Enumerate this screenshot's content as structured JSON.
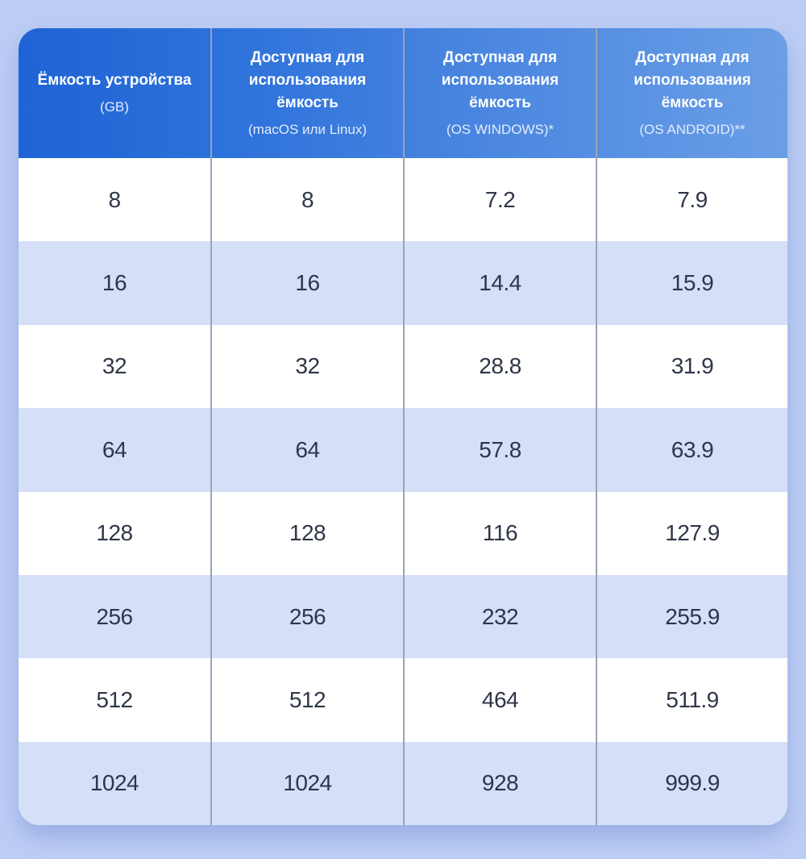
{
  "table": {
    "headers": [
      {
        "title": "Ёмкость устройства",
        "sub": "(GB)"
      },
      {
        "title": "Доступная для использования ёмкость",
        "sub": "(macOS или Linux)"
      },
      {
        "title": "Доступная для использования ёмкость",
        "sub": "(OS WINDOWS)*"
      },
      {
        "title": "Доступная для использования ёмкость",
        "sub": "(OS ANDROID)**"
      }
    ],
    "rows": [
      [
        "8",
        "8",
        "7.2",
        "7.9"
      ],
      [
        "16",
        "16",
        "14.4",
        "15.9"
      ],
      [
        "32",
        "32",
        "28.8",
        "31.9"
      ],
      [
        "64",
        "64",
        "57.8",
        "63.9"
      ],
      [
        "128",
        "128",
        "116",
        "127.9"
      ],
      [
        "256",
        "256",
        "232",
        "255.9"
      ],
      [
        "512",
        "512",
        "464",
        "511.9"
      ],
      [
        "1024",
        "1024",
        "928",
        "999.9"
      ]
    ]
  },
  "colors": {
    "background": "#bccdf5",
    "header_start": "#1f63d6",
    "header_end": "#6a9ee6",
    "row_alt": "#d5dff7",
    "text": "#2e3648"
  }
}
